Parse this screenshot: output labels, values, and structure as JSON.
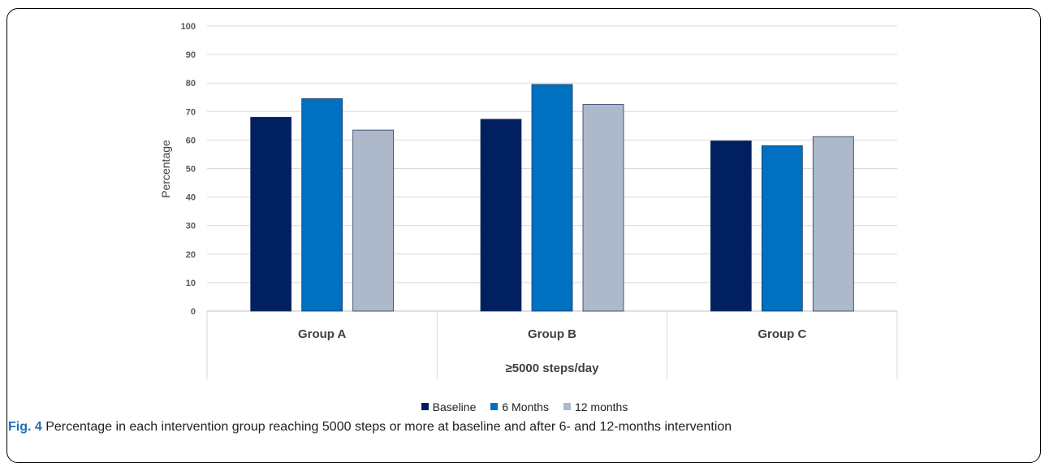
{
  "chart_data": {
    "type": "bar",
    "categories": [
      "Group A",
      "Group B",
      "Group C"
    ],
    "category_group_label": "≥5000 steps/day",
    "series": [
      {
        "name": "Baseline",
        "color": "#002060",
        "values": [
          68,
          67.3,
          59.7
        ]
      },
      {
        "name": "6 Months",
        "color": "#0070c0",
        "values": [
          74.5,
          79.5,
          58
        ]
      },
      {
        "name": "12 months",
        "color": "#adb9ca",
        "values": [
          63.5,
          72.5,
          61.2
        ]
      }
    ],
    "ylabel": "Percentage",
    "ylim": [
      0,
      100
    ],
    "yticks": [
      "0",
      "10",
      "20",
      "30",
      "40",
      "50",
      "60",
      "70",
      "80",
      "90",
      "100"
    ],
    "grid": true,
    "legend_position": "bottom"
  },
  "caption": {
    "label": "Fig. 4",
    "text": " Percentage in each intervention group reaching 5000 steps or more at baseline and after 6- and 12-months intervention"
  }
}
